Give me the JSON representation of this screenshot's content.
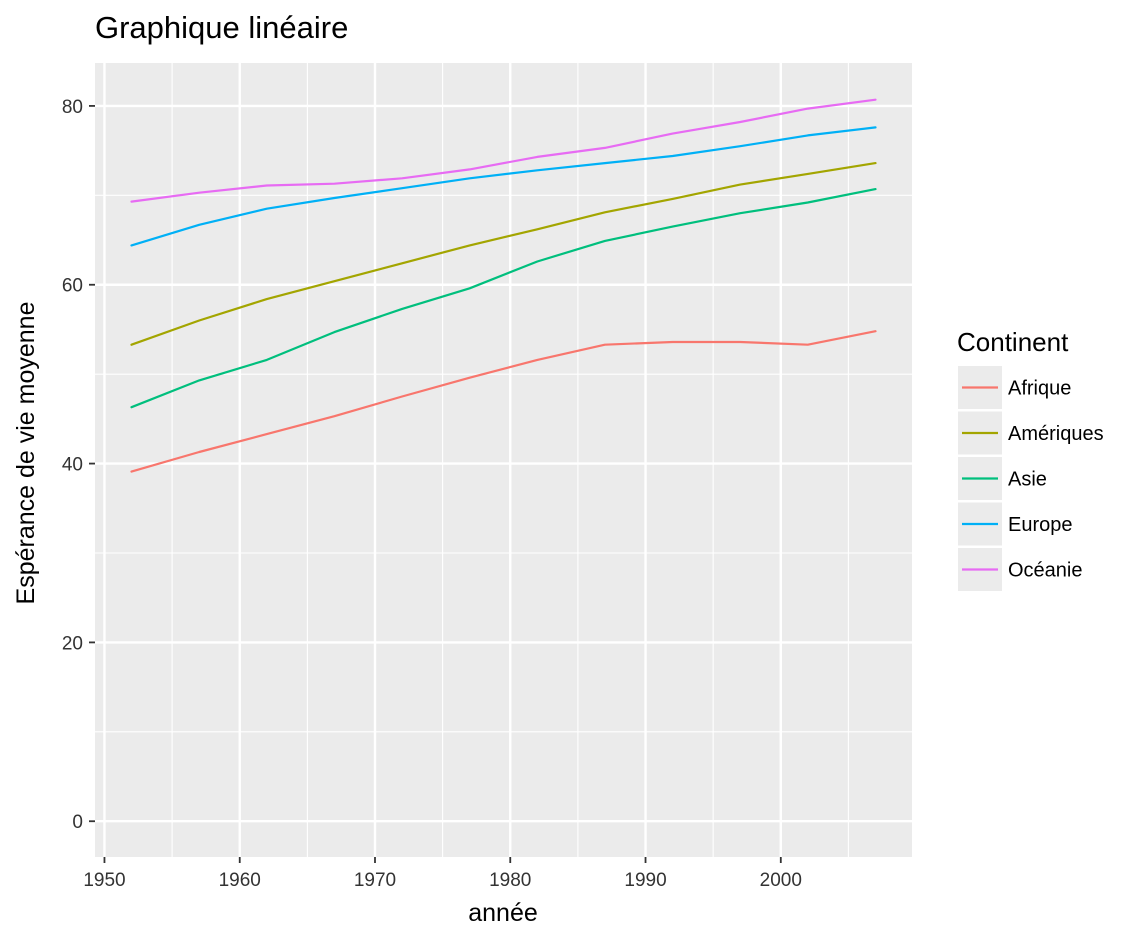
{
  "chart_data": {
    "type": "line",
    "title": "Graphique linéaire",
    "xlabel": "année",
    "ylabel": "Espérance de vie moyenne",
    "xlim": [
      1949.3,
      2009.7
    ],
    "ylim": [
      -4.0,
      84.8
    ],
    "x_ticks": [
      1950,
      1960,
      1970,
      1980,
      1990,
      2000
    ],
    "x_tick_labels": [
      "1950",
      "1960",
      "1970",
      "1980",
      "1990",
      "2000"
    ],
    "x_minor_ticks": [
      1955,
      1965,
      1975,
      1985,
      1995,
      2005
    ],
    "y_ticks": [
      0,
      20,
      40,
      60,
      80
    ],
    "y_tick_labels": [
      "0",
      "20",
      "40",
      "60",
      "80"
    ],
    "y_minor_ticks": [
      10,
      30,
      50,
      70
    ],
    "grid": true,
    "background": "#ebebeb",
    "legend": {
      "title": "Continent",
      "position": "right"
    },
    "x": [
      1952,
      1957,
      1962,
      1967,
      1972,
      1977,
      1982,
      1987,
      1992,
      1997,
      2002,
      2007
    ],
    "series": [
      {
        "name": "Afrique",
        "color": "#F8766D",
        "values": [
          39.1,
          41.3,
          43.3,
          45.3,
          47.5,
          49.6,
          51.6,
          53.3,
          53.6,
          53.6,
          53.3,
          54.8
        ]
      },
      {
        "name": "Amériques",
        "color": "#A3A500",
        "values": [
          53.3,
          56.0,
          58.4,
          60.4,
          62.4,
          64.4,
          66.2,
          68.1,
          69.6,
          71.2,
          72.4,
          73.6
        ]
      },
      {
        "name": "Asie",
        "color": "#00BF7D",
        "values": [
          46.3,
          49.3,
          51.6,
          54.7,
          57.3,
          59.6,
          62.6,
          64.9,
          66.5,
          68.0,
          69.2,
          70.7
        ]
      },
      {
        "name": "Europe",
        "color": "#00B0F6",
        "values": [
          64.4,
          66.7,
          68.5,
          69.7,
          70.8,
          71.9,
          72.8,
          73.6,
          74.4,
          75.5,
          76.7,
          77.6
        ]
      },
      {
        "name": "Océanie",
        "color": "#E76BF3",
        "values": [
          69.3,
          70.3,
          71.1,
          71.3,
          71.9,
          72.9,
          74.3,
          75.3,
          76.9,
          78.2,
          79.7,
          80.7
        ]
      }
    ]
  }
}
